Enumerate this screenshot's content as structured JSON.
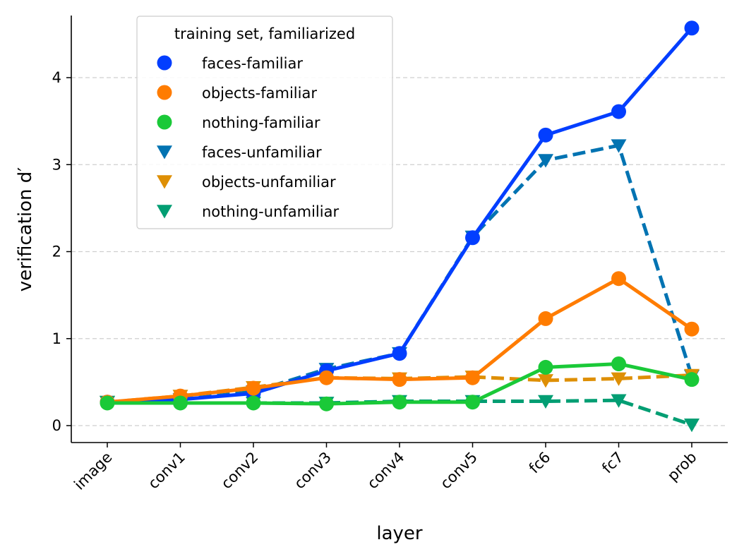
{
  "chart_data": {
    "type": "line",
    "xlabel": "layer",
    "ylabel": "verification d′",
    "categories": [
      "image",
      "conv1",
      "conv2",
      "conv3",
      "conv4",
      "conv5",
      "fc6",
      "fc7",
      "prob"
    ],
    "ylim": [
      -0.19,
      4.71
    ],
    "yticks": [
      "0",
      "1",
      "2",
      "3",
      "4"
    ],
    "grid": "y-dashed",
    "legend": {
      "title": "training set, familiarized",
      "placement": "top-left"
    },
    "series": [
      {
        "name": "faces-familiar",
        "color": "#023eff",
        "marker": "circle",
        "linestyle": "solid",
        "values": [
          0.27,
          0.3,
          0.37,
          0.63,
          0.83,
          2.16,
          3.34,
          3.61,
          4.57
        ]
      },
      {
        "name": "objects-familiar",
        "color": "#ff7c00",
        "marker": "circle",
        "linestyle": "solid",
        "values": [
          0.27,
          0.34,
          0.43,
          0.55,
          0.53,
          0.55,
          1.23,
          1.69,
          1.11
        ]
      },
      {
        "name": "nothing-familiar",
        "color": "#1ac938",
        "marker": "circle",
        "linestyle": "solid",
        "values": [
          0.26,
          0.26,
          0.26,
          0.25,
          0.27,
          0.27,
          0.67,
          0.71,
          0.53
        ]
      },
      {
        "name": "faces-unfamiliar",
        "color": "#0173b2",
        "marker": "triangle-down",
        "linestyle": "dashed",
        "values": [
          0.27,
          0.3,
          0.39,
          0.65,
          0.83,
          2.17,
          3.05,
          3.22,
          0.57
        ]
      },
      {
        "name": "objects-unfamiliar",
        "color": "#de8f05",
        "marker": "triangle-down",
        "linestyle": "dashed",
        "values": [
          0.27,
          0.34,
          0.44,
          0.55,
          0.54,
          0.56,
          0.52,
          0.54,
          0.58
        ]
      },
      {
        "name": "nothing-unfamiliar",
        "color": "#029e73",
        "marker": "triangle-down",
        "linestyle": "dashed",
        "values": [
          0.27,
          0.26,
          0.26,
          0.26,
          0.28,
          0.28,
          0.28,
          0.29,
          0.01
        ]
      }
    ]
  }
}
